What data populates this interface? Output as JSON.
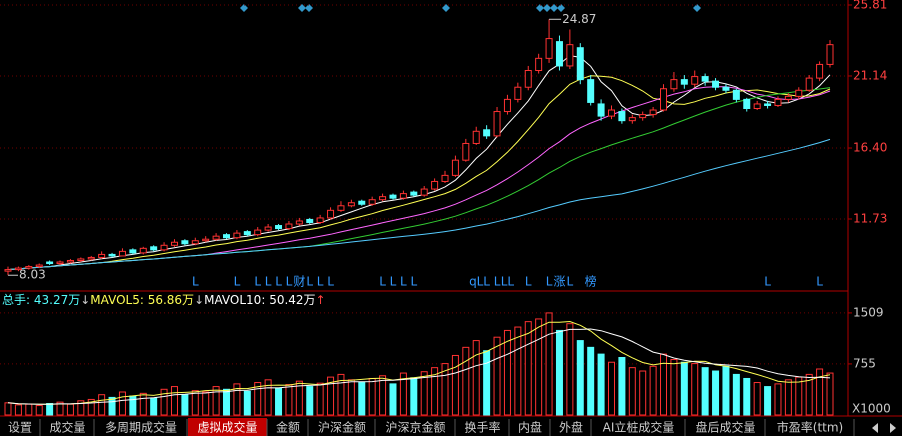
{
  "chart_data": {
    "type": "candlestick",
    "ohlc": [
      [
        8.3,
        8.6,
        8.03,
        8.4
      ],
      [
        8.4,
        8.6,
        8.3,
        8.5
      ],
      [
        8.5,
        8.7,
        8.4,
        8.6
      ],
      [
        8.6,
        8.8,
        8.5,
        8.7
      ],
      [
        8.9,
        9.0,
        8.7,
        8.8
      ],
      [
        8.8,
        9.0,
        8.7,
        8.9
      ],
      [
        8.9,
        9.1,
        8.8,
        9.0
      ],
      [
        9.0,
        9.2,
        8.9,
        9.1
      ],
      [
        9.1,
        9.3,
        9.0,
        9.2
      ],
      [
        9.2,
        9.6,
        9.1,
        9.4
      ],
      [
        9.4,
        9.5,
        9.2,
        9.3
      ],
      [
        9.3,
        9.8,
        9.3,
        9.6
      ],
      [
        9.7,
        9.8,
        9.4,
        9.5
      ],
      [
        9.5,
        9.9,
        9.4,
        9.8
      ],
      [
        9.9,
        10.0,
        9.6,
        9.7
      ],
      [
        9.7,
        10.2,
        9.6,
        10.0
      ],
      [
        10.0,
        10.4,
        9.9,
        10.2
      ],
      [
        10.3,
        10.4,
        10.0,
        10.1
      ],
      [
        10.1,
        10.5,
        10.0,
        10.3
      ],
      [
        10.3,
        10.6,
        10.2,
        10.4
      ],
      [
        10.4,
        10.8,
        10.3,
        10.6
      ],
      [
        10.7,
        10.8,
        10.4,
        10.5
      ],
      [
        10.5,
        11.0,
        10.4,
        10.8
      ],
      [
        10.9,
        11.0,
        10.6,
        10.7
      ],
      [
        10.7,
        11.2,
        10.6,
        11.0
      ],
      [
        11.0,
        11.4,
        10.9,
        11.2
      ],
      [
        11.3,
        11.4,
        11.0,
        11.1
      ],
      [
        11.1,
        11.6,
        11.0,
        11.4
      ],
      [
        11.4,
        11.8,
        11.3,
        11.6
      ],
      [
        11.7,
        11.8,
        11.4,
        11.5
      ],
      [
        11.5,
        12.0,
        11.4,
        11.8
      ],
      [
        11.8,
        12.5,
        11.7,
        12.3
      ],
      [
        12.3,
        12.9,
        12.2,
        12.6
      ],
      [
        12.6,
        13.0,
        12.5,
        12.8
      ],
      [
        12.9,
        13.0,
        12.6,
        12.7
      ],
      [
        12.7,
        13.2,
        12.6,
        13.0
      ],
      [
        13.0,
        13.4,
        12.9,
        13.2
      ],
      [
        13.3,
        13.4,
        13.0,
        13.1
      ],
      [
        13.1,
        13.6,
        13.0,
        13.4
      ],
      [
        13.5,
        13.6,
        13.2,
        13.3
      ],
      [
        13.3,
        13.9,
        13.2,
        13.7
      ],
      [
        13.7,
        14.4,
        13.6,
        14.2
      ],
      [
        14.2,
        14.9,
        14.1,
        14.6
      ],
      [
        14.6,
        15.9,
        14.5,
        15.6
      ],
      [
        15.6,
        17.0,
        15.5,
        16.7
      ],
      [
        16.7,
        17.8,
        16.6,
        17.5
      ],
      [
        17.6,
        17.9,
        17.0,
        17.2
      ],
      [
        17.2,
        19.1,
        17.1,
        18.8
      ],
      [
        18.8,
        19.9,
        18.6,
        19.6
      ],
      [
        19.6,
        20.7,
        19.4,
        20.4
      ],
      [
        20.4,
        21.8,
        20.2,
        21.5
      ],
      [
        21.5,
        22.6,
        21.3,
        22.3
      ],
      [
        22.3,
        24.87,
        22.0,
        23.6
      ],
      [
        23.4,
        23.8,
        21.5,
        21.8
      ],
      [
        21.8,
        24.2,
        21.6,
        23.2
      ],
      [
        23.0,
        23.3,
        20.6,
        20.9
      ],
      [
        20.9,
        21.2,
        19.2,
        19.4
      ],
      [
        19.3,
        19.6,
        18.2,
        18.5
      ],
      [
        18.5,
        19.2,
        18.3,
        18.9
      ],
      [
        18.8,
        19.0,
        18.0,
        18.2
      ],
      [
        18.2,
        18.6,
        18.0,
        18.4
      ],
      [
        18.4,
        18.8,
        18.2,
        18.6
      ],
      [
        18.6,
        19.1,
        18.4,
        18.9
      ],
      [
        18.9,
        20.6,
        18.8,
        20.3
      ],
      [
        20.3,
        21.4,
        20.1,
        20.9
      ],
      [
        20.9,
        21.2,
        20.3,
        20.6
      ],
      [
        20.6,
        21.5,
        20.4,
        21.1
      ],
      [
        21.1,
        21.3,
        20.5,
        20.8
      ],
      [
        20.8,
        21.0,
        20.2,
        20.4
      ],
      [
        20.4,
        20.6,
        20.0,
        20.2
      ],
      [
        20.2,
        20.3,
        19.4,
        19.6
      ],
      [
        19.6,
        19.7,
        18.8,
        19.0
      ],
      [
        19.0,
        19.5,
        18.9,
        19.3
      ],
      [
        19.3,
        19.5,
        19.0,
        19.2
      ],
      [
        19.2,
        19.8,
        19.1,
        19.6
      ],
      [
        19.6,
        20.0,
        19.4,
        19.8
      ],
      [
        19.8,
        20.4,
        19.6,
        20.2
      ],
      [
        20.2,
        21.2,
        20.1,
        21.0
      ],
      [
        21.0,
        22.1,
        20.8,
        21.9
      ],
      [
        21.9,
        23.5,
        21.7,
        23.2
      ]
    ],
    "volume": [
      180,
      150,
      160,
      140,
      170,
      190,
      160,
      210,
      230,
      300,
      260,
      340,
      280,
      320,
      250,
      380,
      420,
      300,
      360,
      340,
      420,
      380,
      460,
      350,
      480,
      520,
      400,
      450,
      500,
      420,
      470,
      560,
      600,
      520,
      480,
      540,
      580,
      460,
      620,
      550,
      640,
      700,
      760,
      880,
      1000,
      1100,
      950,
      1150,
      1250,
      1300,
      1380,
      1420,
      1509,
      1250,
      1350,
      1100,
      1000,
      900,
      780,
      850,
      700,
      650,
      720,
      900,
      820,
      780,
      760,
      700,
      650,
      720,
      600,
      540,
      480,
      420,
      460,
      520,
      560,
      600,
      680,
      620
    ],
    "signals": [
      null,
      null,
      null,
      null,
      null,
      null,
      null,
      null,
      null,
      null,
      null,
      null,
      null,
      null,
      null,
      null,
      null,
      null,
      "L",
      null,
      null,
      null,
      "L",
      null,
      "L",
      "L",
      "L",
      "L",
      "财",
      "L",
      "L",
      "L",
      null,
      null,
      null,
      null,
      "L",
      "L",
      "L",
      "L",
      null,
      null,
      null,
      null,
      null,
      "qL",
      "L",
      "L",
      "LL",
      null,
      "L",
      null,
      "L",
      "涨",
      "L",
      null,
      "榜",
      null,
      null,
      null,
      null,
      null,
      null,
      null,
      null,
      null,
      null,
      null,
      null,
      null,
      null,
      null,
      null,
      "L",
      null,
      null,
      null,
      null,
      "L",
      null
    ],
    "up_color": "#ff3232",
    "down_color": "#54ffff",
    "ylim": [
      7.19,
      25.81
    ],
    "yticks": [
      25.81,
      21.14,
      {
        "value": 16.4,
        "label": "16.40"
      },
      11.73
    ],
    "volume_ylim": [
      0,
      1700
    ],
    "volume_yticks": [
      1509,
      755
    ],
    "volume_unit": "X1000",
    "grid": true,
    "volume_legend": [
      {
        "label": "总手: ",
        "value": "43.27万",
        "arrow": "↓",
        "color": "#54ffff"
      },
      {
        "label": "MAVOL5: ",
        "value": "56.86万",
        "arrow": "↓",
        "color": "#ffff54"
      },
      {
        "label": "MAVOL10: ",
        "value": "50.42万",
        "arrow": "↑",
        "color": "#ffffff"
      }
    ],
    "tabs": [
      "设置",
      "成交量",
      "多周期成交量",
      "虚拟成交量",
      "金额",
      "沪深金额",
      "沪深京金额",
      "换手率",
      "内盘",
      "外盘",
      "AI立桩成交量",
      "盘后成交量",
      "市盈率(ttm)"
    ],
    "active_tab": "虚拟成交量"
  }
}
